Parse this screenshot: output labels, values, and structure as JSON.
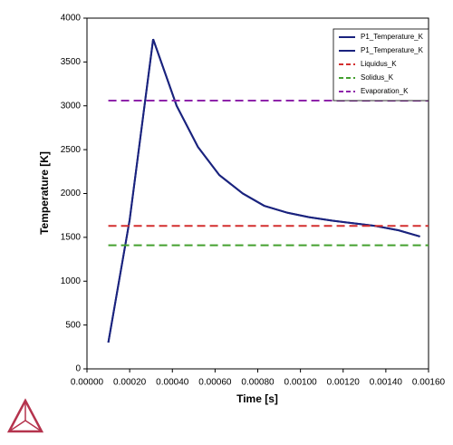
{
  "chart_data": {
    "type": "line",
    "xlabel": "Time [s]",
    "ylabel": "Temperature [K]",
    "xlim": [
      0,
      0.0016
    ],
    "ylim": [
      0,
      4000
    ],
    "xticks": [
      {
        "value": 0,
        "label": "0.00000"
      },
      {
        "value": 0.0002,
        "label": "0.00020"
      },
      {
        "value": 0.0004,
        "label": "0.00040"
      },
      {
        "value": 0.0006,
        "label": "0.00060"
      },
      {
        "value": 0.0008,
        "label": "0.00080"
      },
      {
        "value": 0.001,
        "label": "0.00100"
      },
      {
        "value": 0.0012,
        "label": "0.00120"
      },
      {
        "value": 0.0014,
        "label": "0.00140"
      },
      {
        "value": 0.0016,
        "label": "0.00160"
      }
    ],
    "yticks": [
      0,
      500,
      1000,
      1500,
      2000,
      2500,
      3000,
      3500,
      4000
    ],
    "grid": false,
    "legend": "upper right",
    "series": [
      {
        "name": "P1_Temperature_K",
        "color": "#1a237e",
        "dash": false,
        "x": [
          0.0001,
          0.0002,
          0.00031,
          0.00042,
          0.00052,
          0.00062,
          0.00073,
          0.00083,
          0.00094,
          0.00104,
          0.00115,
          0.00125,
          0.00135,
          0.00146,
          0.00156
        ],
        "values": [
          300,
          1700,
          3760,
          3000,
          2530,
          2210,
          2000,
          1860,
          1780,
          1730,
          1690,
          1660,
          1630,
          1580,
          1510
        ]
      },
      {
        "name": "P1_Temperature_K",
        "color": "#1a237e",
        "dash": false,
        "x": [
          0.0001,
          0.0002,
          0.00031,
          0.00042,
          0.00052,
          0.00062,
          0.00073,
          0.00083,
          0.00094,
          0.00104,
          0.00115,
          0.00125,
          0.00135,
          0.00146,
          0.00156
        ],
        "values": [
          300,
          1700,
          3760,
          3000,
          2530,
          2210,
          2000,
          1860,
          1780,
          1730,
          1690,
          1660,
          1630,
          1580,
          1510
        ]
      },
      {
        "name": "Liquidus_K",
        "color": "#d32f2f",
        "dash": true,
        "x": [
          0.0001,
          0.0016
        ],
        "values": [
          1630,
          1630
        ]
      },
      {
        "name": "Solidus_K",
        "color": "#43a02f",
        "dash": true,
        "x": [
          0.0001,
          0.0016
        ],
        "values": [
          1410,
          1410
        ]
      },
      {
        "name": "Evaporation_K",
        "color": "#8e24aa",
        "dash": true,
        "x": [
          0.0001,
          0.0016
        ],
        "values": [
          3060,
          3060
        ]
      }
    ]
  }
}
